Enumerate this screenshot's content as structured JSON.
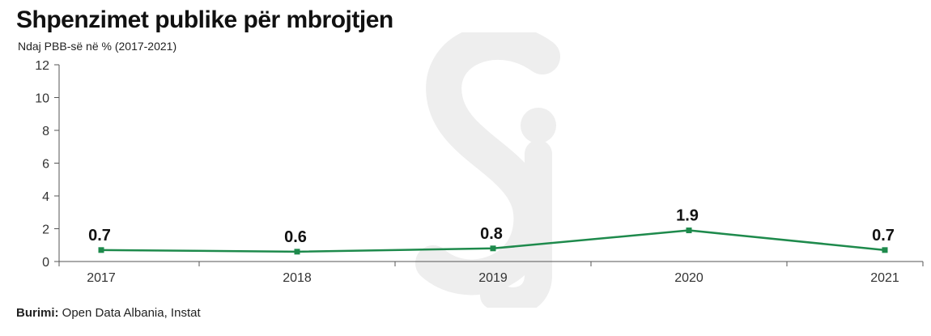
{
  "header": {
    "title": "Shpenzimet publike për mbrojtjen",
    "subtitle": "Ndaj PBB-së në % (2017-2021)"
  },
  "footer": {
    "source_label": "Burimi:",
    "source_text": " Open Data Albania, Instat"
  },
  "colors": {
    "line": "#1e8a4c",
    "axis": "#555555",
    "watermark": "#eeeeee"
  },
  "chart_data": {
    "type": "line",
    "title": "Shpenzimet publike për mbrojtjen",
    "subtitle": "Ndaj PBB-së në % (2017-2021)",
    "xlabel": "",
    "ylabel": "",
    "categories": [
      "2017",
      "2018",
      "2019",
      "2020",
      "2021"
    ],
    "series": [
      {
        "values": [
          0.7,
          0.6,
          0.8,
          1.9,
          0.7
        ],
        "data_labels": [
          "0.7",
          "0.6",
          "0.8",
          "1.9",
          "0.7"
        ]
      }
    ],
    "ylim": [
      0,
      12
    ],
    "yticks": [
      0,
      2,
      4,
      6,
      8,
      10,
      12
    ],
    "grid": false,
    "legend": "none",
    "markers": "square"
  }
}
